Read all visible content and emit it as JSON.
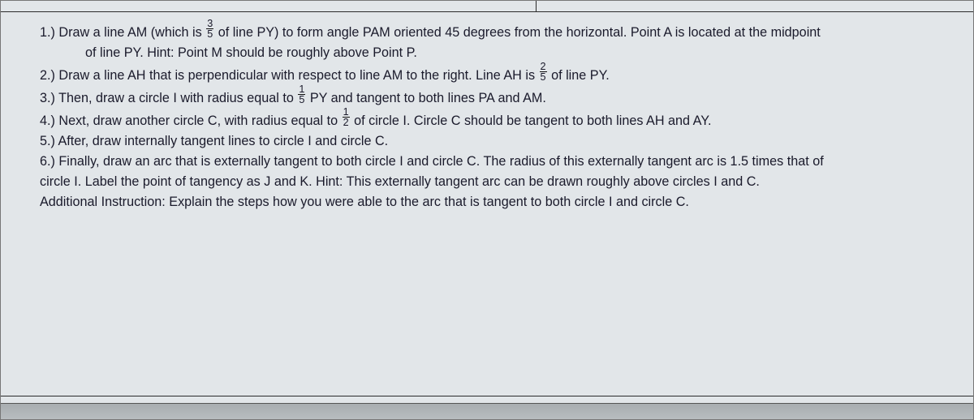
{
  "colors": {
    "page_bg": "#e2e6e9",
    "text": "#1a1a2b",
    "rule": "#2b2b2b",
    "bottom_band_top": "#a8adb0",
    "bottom_band_bottom": "#b8bdc0"
  },
  "typography": {
    "family": "Arial",
    "size_pt": 12,
    "line_height": 1.55
  },
  "items": [
    {
      "num": "1.)",
      "pre": " Draw a line AM (which is ",
      "frac": {
        "n": "3",
        "d": "5"
      },
      "post": " of line PY) to form angle PAM oriented 45 degrees from the horizontal. Point A is located at the midpoint"
    },
    {
      "indent": true,
      "text": "of line PY. Hint: Point M should be roughly above Point P."
    },
    {
      "num": "2.)",
      "pre": " Draw a line AH that is perpendicular with respect to line AM to the right. Line AH is ",
      "frac": {
        "n": "2",
        "d": "5"
      },
      "post": " of line PY."
    },
    {
      "num": "3.)",
      "pre": " Then, draw a circle I with radius equal to ",
      "frac": {
        "n": "1",
        "d": "5"
      },
      "post": " PY and tangent to both lines PA and AM."
    },
    {
      "num": "4.)",
      "pre": " Next, draw another circle C, with radius equal to ",
      "frac": {
        "n": "1",
        "d": "2"
      },
      "post": " of circle I. Circle C should be tangent to both lines AH and AY."
    },
    {
      "num": "5.)",
      "text": " After, draw internally tangent lines to circle I and circle C."
    },
    {
      "num": "6.)",
      "text": " Finally, draw an arc that is externally tangent to both circle I and circle C. The radius of this externally tangent arc is 1.5 times that of"
    },
    {
      "text": "circle I. Label the point of tangency as J and K. Hint: This externally tangent arc can be drawn roughly above circles I and C."
    },
    {
      "text": "Additional Instruction: Explain the steps how you were able to the arc that is tangent to both circle I and circle C."
    }
  ]
}
